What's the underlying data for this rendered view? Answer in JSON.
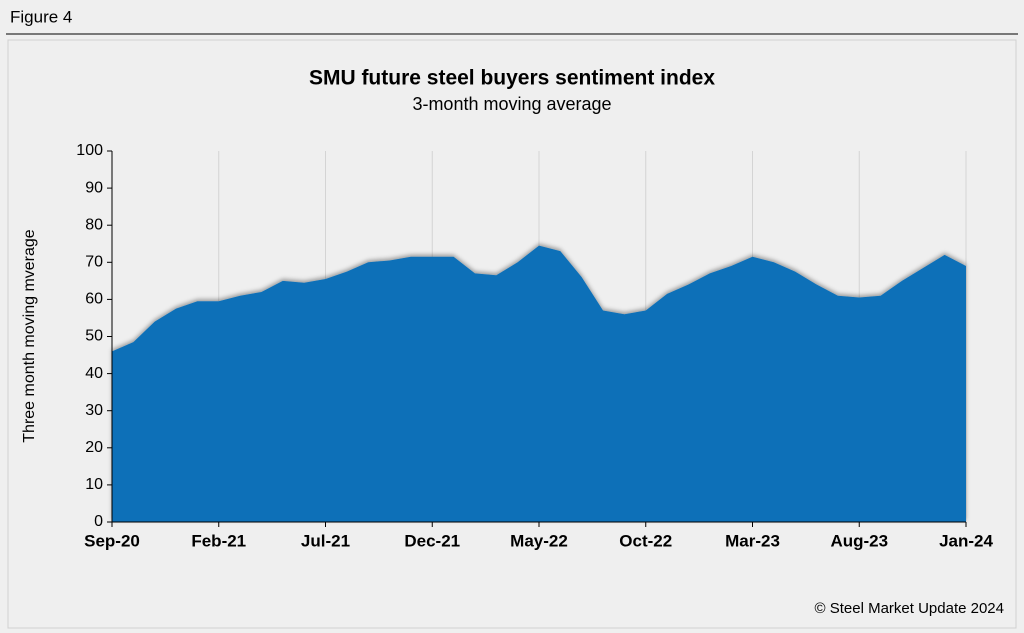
{
  "figure_label": "Figure 4",
  "chart_data": {
    "type": "area",
    "title": "SMU future steel buyers sentiment index",
    "subtitle": "3-month moving average",
    "ylabel": "Three month moving mverage",
    "source": "© Steel Market Update 2024",
    "categories": [
      "Sep-20",
      null,
      null,
      null,
      null,
      "Feb-21",
      null,
      null,
      null,
      null,
      "Jul-21",
      null,
      null,
      null,
      null,
      "Dec-21",
      null,
      null,
      null,
      null,
      "May-22",
      null,
      null,
      null,
      null,
      "Oct-22",
      null,
      null,
      null,
      null,
      "Mar-23",
      null,
      null,
      null,
      null,
      "Aug-23",
      null,
      null,
      null,
      null,
      "Jan-24"
    ],
    "values": [
      46,
      48.5,
      54,
      57.5,
      59.5,
      59.5,
      61,
      62,
      65,
      64.5,
      65.5,
      67.5,
      70,
      70.5,
      71.5,
      71.5,
      71.5,
      67,
      66.5,
      70,
      74.5,
      73,
      66,
      57,
      56,
      57,
      61.5,
      64,
      67,
      69,
      71.5,
      70,
      67.5,
      64,
      61,
      60.5,
      61,
      65,
      68.5,
      72,
      69
    ],
    "color": "#1070b8",
    "ylim": [
      0,
      100
    ],
    "yticks": [
      0,
      10,
      20,
      30,
      40,
      50,
      60,
      70,
      80,
      90,
      100
    ],
    "grid": "x"
  }
}
